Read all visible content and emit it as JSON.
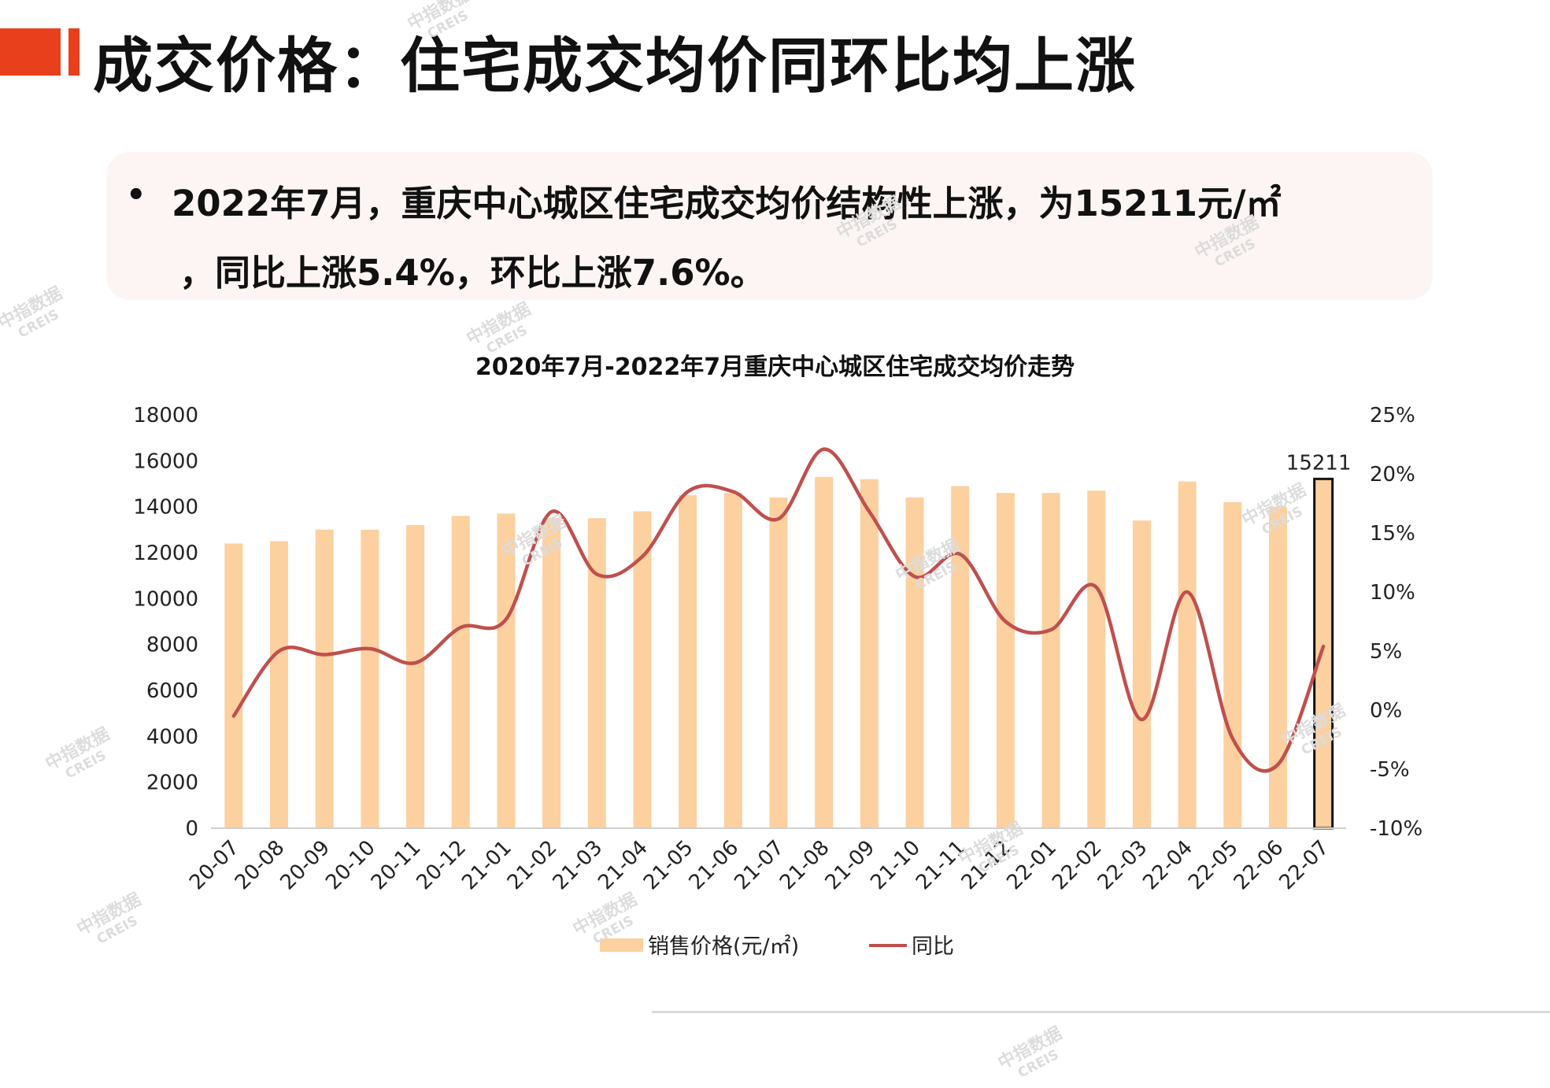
{
  "page": {
    "title": "成交价格：住宅成交均价同环比均上涨",
    "summary_bullet": "•",
    "summary_line1": "2022年7月，重庆中心城区住宅成交均价结构性上涨，为15211元/㎡",
    "summary_line2": "，同比上涨5.4%，环比上涨7.6%。"
  },
  "watermark": {
    "text": "中指数据",
    "sub": "CREIS"
  },
  "chart_data": {
    "type": "bar",
    "title": "2020年7月-2022年7月重庆中心城区住宅成交均价走势",
    "categories": [
      "20-07",
      "20-08",
      "20-09",
      "20-10",
      "20-11",
      "20-12",
      "21-01",
      "21-02",
      "21-03",
      "21-04",
      "21-05",
      "21-06",
      "21-07",
      "21-08",
      "21-09",
      "21-10",
      "21-11",
      "21-12",
      "22-01",
      "22-02",
      "22-03",
      "22-04",
      "22-05",
      "22-06",
      "22-07"
    ],
    "series": [
      {
        "name": "销售价格(元/㎡)",
        "type": "bar",
        "axis": "left",
        "color": "#fcd09f",
        "values": [
          12400,
          12500,
          13000,
          13000,
          13200,
          13600,
          13700,
          13500,
          13500,
          13800,
          14500,
          14600,
          14400,
          15300,
          15200,
          14400,
          14900,
          14600,
          14600,
          14700,
          13400,
          15100,
          14200,
          14000,
          15211
        ]
      },
      {
        "name": "同比",
        "type": "line",
        "axis": "right",
        "color": "#c0504d",
        "values": [
          -0.5,
          5.0,
          4.7,
          5.2,
          4.0,
          7.0,
          7.7,
          16.8,
          11.5,
          13.0,
          18.5,
          18.5,
          16.2,
          22.1,
          16.8,
          11.3,
          13.2,
          7.5,
          6.8,
          10.4,
          -0.8,
          10.0,
          -2.4,
          -4.6,
          5.4
        ]
      }
    ],
    "highlight": {
      "category": "22-07",
      "label": "15211"
    },
    "y_left": {
      "min": 0,
      "max": 18000,
      "ticks": [
        "0",
        "2000",
        "4000",
        "6000",
        "8000",
        "10000",
        "12000",
        "14000",
        "16000",
        "18000"
      ]
    },
    "y_right": {
      "min": -10,
      "max": 25,
      "ticks": [
        "-10%",
        "-5%",
        "0%",
        "5%",
        "10%",
        "15%",
        "20%",
        "25%"
      ]
    },
    "legend": {
      "position": "bottom",
      "bar_label": "销售价格(元/㎡)",
      "line_label": "同比"
    },
    "grid": false
  }
}
